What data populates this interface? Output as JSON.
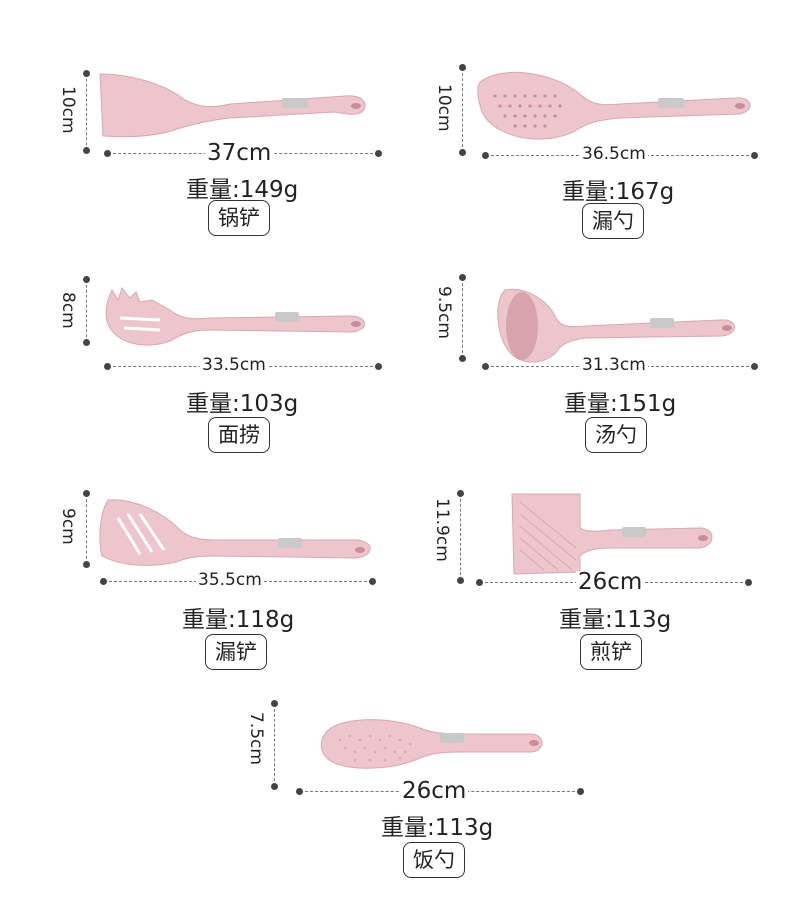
{
  "colors": {
    "silicone": "#ecc5cd",
    "silicone_shade": "#d9a8b2",
    "metal": "#c9c9c9",
    "dimension_line": "#777777"
  },
  "items": [
    {
      "name": "锅铲",
      "length": "37cm",
      "height": "10cm",
      "weight": "重量:149g",
      "icon": "turner-icon"
    },
    {
      "name": "漏勺",
      "length": "36.5cm",
      "height": "10cm",
      "weight": "重量:167g",
      "icon": "skimmer-icon"
    },
    {
      "name": "面捞",
      "length": "33.5cm",
      "height": "8cm",
      "weight": "重量:103g",
      "icon": "spaghetti-server-icon"
    },
    {
      "name": "汤勺",
      "length": "31.3cm",
      "height": "9.5cm",
      "weight": "重量:151g",
      "icon": "ladle-icon"
    },
    {
      "name": "漏铲",
      "length": "35.5cm",
      "height": "9cm",
      "weight": "重量:118g",
      "icon": "slotted-turner-icon"
    },
    {
      "name": "煎铲",
      "length": "26cm",
      "height": "11.9cm",
      "weight": "重量:113g",
      "icon": "flat-spatula-icon"
    },
    {
      "name": "饭勺",
      "length": "26cm",
      "height": "7.5cm",
      "weight": "重量:113g",
      "icon": "rice-paddle-icon"
    }
  ]
}
